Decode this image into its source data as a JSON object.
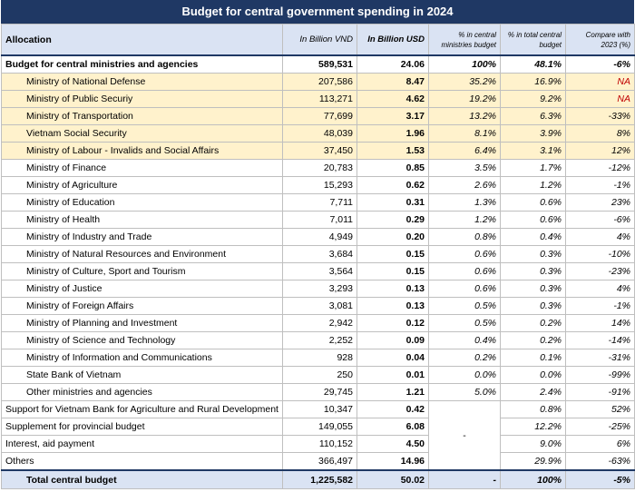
{
  "title": "Budget for central government spending in 2024",
  "headers": {
    "allocation": "Allocation",
    "vnd": "In Billion VND",
    "usd": "In Billion USD",
    "pct_ministries": "% in central ministries budget",
    "pct_total": "% in total central budget",
    "compare": "Compare with 2023 (%)"
  },
  "rows": [
    {
      "label": "Budget for central ministries and agencies",
      "vnd": "589,531",
      "usd": "24.06",
      "pct_min": "100%",
      "pct_total": "48.1%",
      "cmp": "-6%",
      "bold": true,
      "indent": false,
      "hl": false,
      "na": false
    },
    {
      "label": "Ministry of National Defense",
      "vnd": "207,586",
      "usd": "8.47",
      "pct_min": "35.2%",
      "pct_total": "16.9%",
      "cmp": "NA",
      "bold": false,
      "indent": true,
      "hl": true,
      "na": true
    },
    {
      "label": "Ministry of Public Securiy",
      "vnd": "113,271",
      "usd": "4.62",
      "pct_min": "19.2%",
      "pct_total": "9.2%",
      "cmp": "NA",
      "bold": false,
      "indent": true,
      "hl": true,
      "na": true
    },
    {
      "label": "Ministry of Transportation",
      "vnd": "77,699",
      "usd": "3.17",
      "pct_min": "13.2%",
      "pct_total": "6.3%",
      "cmp": "-33%",
      "bold": false,
      "indent": true,
      "hl": true,
      "na": false
    },
    {
      "label": "Vietnam Social Security",
      "vnd": "48,039",
      "usd": "1.96",
      "pct_min": "8.1%",
      "pct_total": "3.9%",
      "cmp": "8%",
      "bold": false,
      "indent": true,
      "hl": true,
      "na": false
    },
    {
      "label": "Ministry of Labour - Invalids and Social Affairs",
      "vnd": "37,450",
      "usd": "1.53",
      "pct_min": "6.4%",
      "pct_total": "3.1%",
      "cmp": "12%",
      "bold": false,
      "indent": true,
      "hl": true,
      "na": false
    },
    {
      "label": "Ministry of Finance",
      "vnd": "20,783",
      "usd": "0.85",
      "pct_min": "3.5%",
      "pct_total": "1.7%",
      "cmp": "-12%",
      "bold": false,
      "indent": true,
      "hl": false,
      "na": false
    },
    {
      "label": "Ministry of Agriculture",
      "vnd": "15,293",
      "usd": "0.62",
      "pct_min": "2.6%",
      "pct_total": "1.2%",
      "cmp": "-1%",
      "bold": false,
      "indent": true,
      "hl": false,
      "na": false
    },
    {
      "label": "Ministry of Education",
      "vnd": "7,711",
      "usd": "0.31",
      "pct_min": "1.3%",
      "pct_total": "0.6%",
      "cmp": "23%",
      "bold": false,
      "indent": true,
      "hl": false,
      "na": false
    },
    {
      "label": "Ministry of Health",
      "vnd": "7,011",
      "usd": "0.29",
      "pct_min": "1.2%",
      "pct_total": "0.6%",
      "cmp": "-6%",
      "bold": false,
      "indent": true,
      "hl": false,
      "na": false
    },
    {
      "label": "Ministry of Industry and Trade",
      "vnd": "4,949",
      "usd": "0.20",
      "pct_min": "0.8%",
      "pct_total": "0.4%",
      "cmp": "4%",
      "bold": false,
      "indent": true,
      "hl": false,
      "na": false
    },
    {
      "label": "Ministry of Natural Resources and Environment",
      "vnd": "3,684",
      "usd": "0.15",
      "pct_min": "0.6%",
      "pct_total": "0.3%",
      "cmp": "-10%",
      "bold": false,
      "indent": true,
      "hl": false,
      "na": false
    },
    {
      "label": "Ministry of Culture, Sport and Tourism",
      "vnd": "3,564",
      "usd": "0.15",
      "pct_min": "0.6%",
      "pct_total": "0.3%",
      "cmp": "-23%",
      "bold": false,
      "indent": true,
      "hl": false,
      "na": false
    },
    {
      "label": "Ministry of Justice",
      "vnd": "3,293",
      "usd": "0.13",
      "pct_min": "0.6%",
      "pct_total": "0.3%",
      "cmp": "4%",
      "bold": false,
      "indent": true,
      "hl": false,
      "na": false
    },
    {
      "label": "Ministry of Foreign Affairs",
      "vnd": "3,081",
      "usd": "0.13",
      "pct_min": "0.5%",
      "pct_total": "0.3%",
      "cmp": "-1%",
      "bold": false,
      "indent": true,
      "hl": false,
      "na": false
    },
    {
      "label": "Ministry of Planning and Investment",
      "vnd": "2,942",
      "usd": "0.12",
      "pct_min": "0.5%",
      "pct_total": "0.2%",
      "cmp": "14%",
      "bold": false,
      "indent": true,
      "hl": false,
      "na": false
    },
    {
      "label": "Ministry of Science and Technology",
      "vnd": "2,252",
      "usd": "0.09",
      "pct_min": "0.4%",
      "pct_total": "0.2%",
      "cmp": "-14%",
      "bold": false,
      "indent": true,
      "hl": false,
      "na": false
    },
    {
      "label": "Ministry of Information and Communications",
      "vnd": "928",
      "usd": "0.04",
      "pct_min": "0.2%",
      "pct_total": "0.1%",
      "cmp": "-31%",
      "bold": false,
      "indent": true,
      "hl": false,
      "na": false
    },
    {
      "label": "State Bank of Vietnam",
      "vnd": "250",
      "usd": "0.01",
      "pct_min": "0.0%",
      "pct_total": "0.0%",
      "cmp": "-99%",
      "bold": false,
      "indent": true,
      "hl": false,
      "na": false
    },
    {
      "label": "Other ministries and agencies",
      "vnd": "29,745",
      "usd": "1.21",
      "pct_min": "5.0%",
      "pct_total": "2.4%",
      "cmp": "-91%",
      "bold": false,
      "indent": true,
      "hl": false,
      "na": false
    }
  ],
  "other_rows": [
    {
      "label": "Support for Vietnam Bank for Agriculture and Rural Development",
      "vnd": "10,347",
      "usd": "0.42",
      "pct_total": "0.8%",
      "cmp": "52%"
    },
    {
      "label": "Supplement for provincial budget",
      "vnd": "149,055",
      "usd": "6.08",
      "pct_total": "12.2%",
      "cmp": "-25%"
    },
    {
      "label": "Interest, aid payment",
      "vnd": "110,152",
      "usd": "4.50",
      "pct_total": "9.0%",
      "cmp": "6%"
    },
    {
      "label": "Others",
      "vnd": "366,497",
      "usd": "14.96",
      "pct_total": "29.9%",
      "cmp": "-63%"
    }
  ],
  "other_pct_min": "-",
  "total": {
    "label": "Total central budget",
    "vnd": "1,225,582",
    "usd": "50.02",
    "pct_min": "-",
    "pct_total": "100%",
    "cmp": "-5%"
  },
  "colors": {
    "header_navy": "#1f3864",
    "header_light": "#dae3f3",
    "highlight": "#fff2cc",
    "na_red": "#c00000"
  }
}
